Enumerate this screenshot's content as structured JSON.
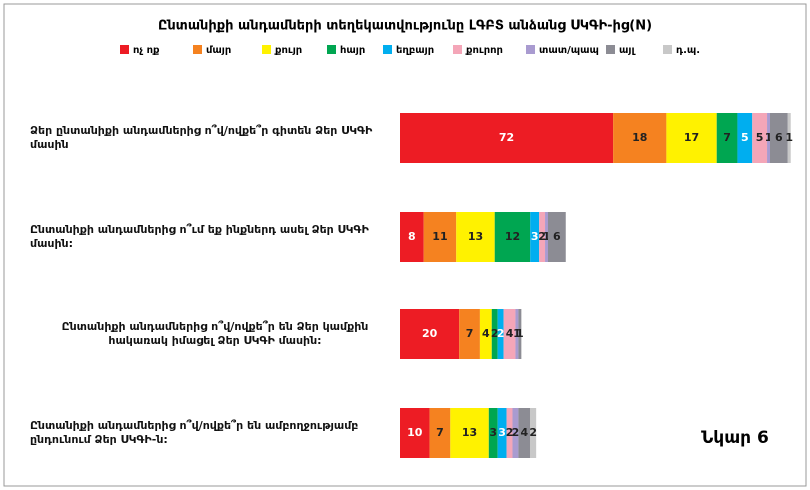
{
  "chart_data": {
    "type": "stacked_barh",
    "title": "Ընտանիքի անդամների տեղեկատվությունը ԼԳԲՏ անձանց ՍԿԳԻ-ից(N)",
    "categories": [
      "Ձեր ընտանիքի անդամներից ո՞վ/ովքե՞ր գիտեն Ձեր ՍԿԳԻ մասին",
      "Ընտանիքի անդամներից ո՞ւմ եք ինքներդ ասել Ձեր ՍԿԳԻ մասին:",
      "Ընտանիքի անդամներից ո՞վ/ովքե՞ր են Ձեր կամքին հակառակ իմացել Ձեր ՍԿԳԻ մասին:",
      "Ընտանիքի անդամներից ո՞վ/ովքե՞ր են ամբողջությամբ ընդունում Ձեր ՍԿԳԻ-ն:"
    ],
    "series": [
      {
        "name": "ոչ ոք",
        "color": "#ed1c24",
        "values": [
          72,
          8,
          20,
          10
        ]
      },
      {
        "name": "մայր",
        "color": "#f58220",
        "values": [
          18,
          11,
          7,
          7
        ]
      },
      {
        "name": "քույր",
        "color": "#fff200",
        "values": [
          17,
          13,
          4,
          13
        ]
      },
      {
        "name": "հայր",
        "color": "#00a651",
        "values": [
          7,
          12,
          2,
          3
        ]
      },
      {
        "name": "եղբայր",
        "color": "#00aeef",
        "values": [
          5,
          3,
          2,
          3
        ]
      },
      {
        "name": "քուրոր",
        "color": "#f4a6b8",
        "values": [
          5,
          2,
          4,
          2
        ]
      },
      {
        "name": "տատ/պապ",
        "color": "#a99bd0",
        "values": [
          1,
          1,
          1,
          2
        ]
      },
      {
        "name": "այլ",
        "color": "#8c8c94",
        "values": [
          6,
          6,
          1,
          4
        ]
      },
      {
        "name": "դ.պ.",
        "color": "#c8c8c8",
        "values": [
          1,
          0,
          0,
          2
        ]
      }
    ],
    "annotation": "Նկար 6"
  }
}
